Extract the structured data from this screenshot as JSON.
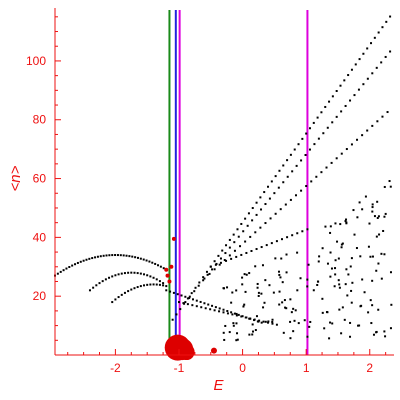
{
  "chart_data": {
    "type": "scatter",
    "title": "",
    "xlabel": "E",
    "ylabel": "<n>",
    "xlim": [
      -2.95,
      2.35
    ],
    "ylim": [
      0,
      118
    ],
    "x_ticks": [
      -2,
      -1,
      0,
      1,
      2
    ],
    "x_tick_labels": [
      "-2",
      "-1",
      "0",
      "1",
      "2"
    ],
    "y_ticks": [
      20,
      40,
      60,
      80,
      100
    ],
    "y_tick_labels": [
      "20",
      "40",
      "60",
      "80",
      "100"
    ],
    "grid": false,
    "legend": "none",
    "colors": {
      "axis": "#ee1111",
      "points": "#000000",
      "highlight": "#dd0000",
      "line_green": "#1a8a1a",
      "line_blue": "#2222dd",
      "line_magenta": "#dd00dd"
    },
    "vertical_lines": [
      {
        "x": -1.15,
        "color": "#1a8a1a"
      },
      {
        "x": -1.05,
        "color": "#2222dd"
      },
      {
        "x": -0.99,
        "color": "#dd00dd"
      },
      {
        "x": 1.02,
        "color": "#dd00dd"
      }
    ],
    "bands": [
      {
        "x_start": -2.95,
        "x_end": -1.2,
        "type": "arc",
        "peak_x": -2.0,
        "peak_y": 34,
        "base_y": 27,
        "step": 0.045
      },
      {
        "x_start": -2.4,
        "x_end": -1.25,
        "type": "arc",
        "peak_x": -1.75,
        "peak_y": 28,
        "base_y": 22,
        "step": 0.05
      },
      {
        "x_start": -2.05,
        "x_end": -1.2,
        "type": "arc",
        "peak_x": -1.4,
        "peak_y": 24,
        "base_y": 18,
        "step": 0.05
      },
      {
        "x_start": -1.1,
        "x_end": 2.35,
        "type": "line",
        "y_start": 12,
        "y_end": 116,
        "step": 0.06
      },
      {
        "x_start": -0.9,
        "x_end": 2.35,
        "type": "line",
        "y_start": 18,
        "y_end": 104,
        "step": 0.07
      },
      {
        "x_start": -0.6,
        "x_end": 2.35,
        "type": "line",
        "y_start": 26,
        "y_end": 84,
        "step": 0.08
      },
      {
        "x_start": -0.5,
        "x_end": 1.05,
        "type": "line",
        "y_start": 30,
        "y_end": 43,
        "step": 0.08
      },
      {
        "x_start": -1.2,
        "x_end": 0.3,
        "type": "line",
        "y_start": 22,
        "y_end": 11,
        "step": 0.06
      },
      {
        "x_start": -1.0,
        "x_end": 0.6,
        "type": "line",
        "y_start": 18,
        "y_end": 10,
        "step": 0.07
      }
    ],
    "scatter_region": {
      "x": [
        -0.3,
        2.35
      ],
      "y": [
        5,
        60
      ],
      "count": 190
    },
    "highlight_points": [
      {
        "x": -1.2,
        "y": 29,
        "size": 2
      },
      {
        "x": -1.18,
        "y": 27,
        "size": 2
      },
      {
        "x": -1.15,
        "y": 25,
        "size": 2
      },
      {
        "x": -1.12,
        "y": 30,
        "size": 2
      },
      {
        "x": -1.08,
        "y": 39.5,
        "size": 2
      },
      {
        "x": -0.45,
        "y": 1.5,
        "size": 3
      },
      {
        "x": -0.98,
        "y": 3,
        "size": 3
      },
      {
        "x": -1.12,
        "y": 2,
        "size": 4
      },
      {
        "x": -1.1,
        "y": 2,
        "size": 7
      },
      {
        "x": -1.05,
        "y": 2,
        "size": 10
      },
      {
        "x": -1.02,
        "y": 2.5,
        "size": 13
      },
      {
        "x": -0.95,
        "y": 2,
        "size": 11
      },
      {
        "x": -0.88,
        "y": 1,
        "size": 8
      }
    ]
  }
}
